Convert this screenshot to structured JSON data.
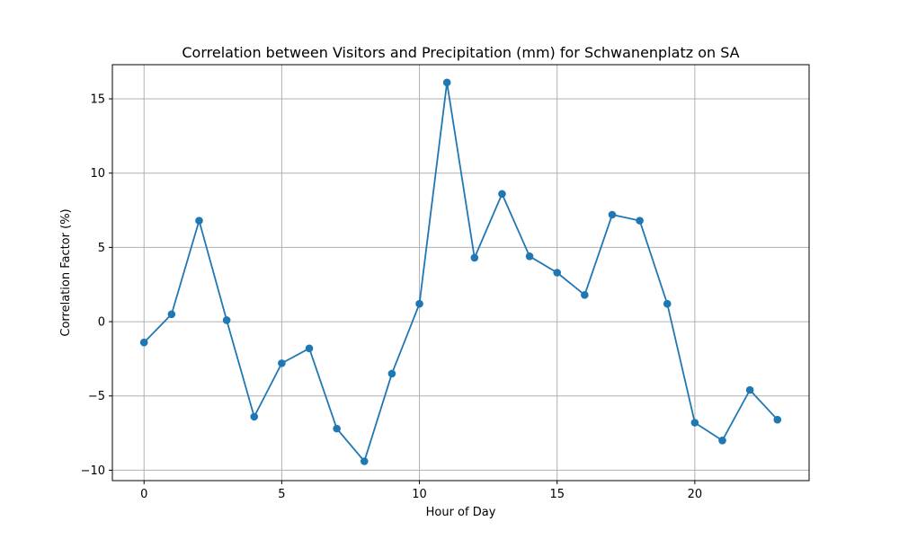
{
  "chart_data": {
    "type": "line",
    "title": "Correlation between Visitors and Precipitation (mm) for Schwanenplatz on SA",
    "xlabel": "Hour of Day",
    "ylabel": "Correlation Factor (%)",
    "xlim": [
      -1.15,
      24.15
    ],
    "ylim": [
      -10.7,
      17.3
    ],
    "xticks": [
      0,
      5,
      10,
      15,
      20
    ],
    "yticks": [
      -10,
      -5,
      0,
      5,
      10,
      15
    ],
    "xtick_labels": [
      "0",
      "5",
      "10",
      "15",
      "20"
    ],
    "ytick_labels": [
      "−10",
      "−5",
      "0",
      "5",
      "10",
      "15"
    ],
    "grid": true,
    "series": [
      {
        "color": "#1f77b4",
        "marker": "circle",
        "x": [
          0,
          1,
          2,
          3,
          4,
          5,
          6,
          7,
          8,
          9,
          10,
          11,
          12,
          13,
          14,
          15,
          16,
          17,
          18,
          19,
          20,
          21,
          22,
          23
        ],
        "y": [
          -1.4,
          0.5,
          6.8,
          0.1,
          -6.4,
          -2.8,
          -1.8,
          -7.2,
          -9.4,
          -3.5,
          1.2,
          16.1,
          4.3,
          8.6,
          4.4,
          3.3,
          1.8,
          7.2,
          6.8,
          1.2,
          -6.8,
          -8.0,
          -4.6,
          -6.6
        ]
      }
    ]
  }
}
